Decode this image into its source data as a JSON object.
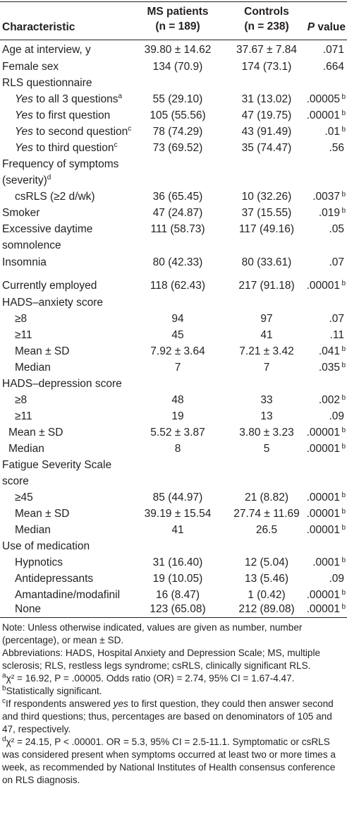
{
  "table": {
    "headers": {
      "characteristic": "Characteristic",
      "ms_line1": "MS patients",
      "ms_line2": "(n = 189)",
      "ctrl_line1": "Controls",
      "ctrl_line2": "(n = 238)",
      "p_letter": "P",
      "p_rest": " value"
    },
    "rows": [
      {
        "label": "Age at interview, y",
        "ms": "39.80 ± 14.62",
        "ctrl": "37.67 ± 7.84",
        "p": ".071"
      },
      {
        "label": "Female sex",
        "ms": "134 (70.9)",
        "ctrl": "174 (73.1)",
        "p": ".664"
      },
      {
        "label": "RLS questionnaire"
      },
      {
        "label_em": "Yes",
        "label_rest": " to all 3 questions",
        "label_sup": "a",
        "ms": "55 (29.10)",
        "ctrl": "31 (13.02)",
        "p": ".00005",
        "p_sup": "b"
      },
      {
        "label_em": "Yes",
        "label_rest": " to first question",
        "ms": "105 (55.56)",
        "ctrl": "47 (19.75)",
        "p": ".00001",
        "p_sup": "b"
      },
      {
        "label_em": "Yes",
        "label_rest": " to second question",
        "label_sup": "c",
        "ms": "78 (74.29)",
        "ctrl": "43 (91.49)",
        "p": ".01",
        "p_sup": "b"
      },
      {
        "label_em": "Yes",
        "label_rest": " to third question",
        "label_sup": "c",
        "ms": "73 (69.52)",
        "ctrl": "35 (74.47)",
        "p": ".56"
      },
      {
        "label_line1": "Frequency of symptoms",
        "label_line2": "(severity)",
        "label_sup": "d"
      },
      {
        "label": "csRLS (≥2 d/wk)",
        "ms": "36 (65.45)",
        "ctrl": "10 (32.26)",
        "p": ".0037",
        "p_sup": "b"
      },
      {
        "label": "Smoker",
        "ms": "47 (24.87)",
        "ctrl": "37 (15.55)",
        "p": ".019",
        "p_sup": "b"
      },
      {
        "label_line1": "Excessive daytime",
        "label_line2": "somnolence",
        "ms": "111 (58.73)",
        "ctrl": "117 (49.16)",
        "p": ".05"
      },
      {
        "label": "Insomnia",
        "ms": "80 (42.33)",
        "ctrl": "80 (33.61)",
        "p": ".07"
      },
      {
        "label": "Currently employed",
        "ms": "118 (62.43)",
        "ctrl": "217 (91.18)",
        "p": ".00001",
        "p_sup": "b"
      },
      {
        "label": "HADS–anxiety score"
      },
      {
        "label": "≥8",
        "ms": "94",
        "ctrl": "97",
        "p": ".07"
      },
      {
        "label": "≥11",
        "ms": "45",
        "ctrl": "41",
        "p": ".11"
      },
      {
        "label": "Mean ± SD",
        "ms": "7.92 ± 3.64",
        "ctrl": "7.21 ± 3.42",
        "p": ".041",
        "p_sup": "b"
      },
      {
        "label": "Median",
        "ms": "7",
        "ctrl": "7",
        "p": ".035",
        "p_sup": "b"
      },
      {
        "label": "HADS–depression score"
      },
      {
        "label": "≥8",
        "ms": "48",
        "ctrl": "33",
        "p": ".002",
        "p_sup": "b"
      },
      {
        "label": "≥11",
        "ms": "19",
        "ctrl": "13",
        "p": ".09"
      },
      {
        "label": "Mean ± SD",
        "ms": "5.52 ± 3.87",
        "ctrl": "3.80 ± 3.23",
        "p": ".00001",
        "p_sup": "b"
      },
      {
        "label": "Median",
        "ms": "8",
        "ctrl": "5",
        "p": ".00001",
        "p_sup": "b"
      },
      {
        "label_line1": "Fatigue Severity Scale",
        "label_line2": "score"
      },
      {
        "label": "≥45",
        "ms": "85 (44.97)",
        "ctrl": "21 (8.82)",
        "p": ".00001",
        "p_sup": "b"
      },
      {
        "label": "Mean ± SD",
        "ms": "39.19 ± 15.54",
        "ctrl": "27.74 ± 11.69",
        "p": ".00001",
        "p_sup": "b"
      },
      {
        "label": "Median",
        "ms": "41",
        "ctrl": "26.5",
        "p": ".00001",
        "p_sup": "b"
      },
      {
        "label": "Use of medication"
      },
      {
        "label": "Hypnotics",
        "ms": "31 (16.40)",
        "ctrl": "12 (5.04)",
        "p": ".0001",
        "p_sup": "b"
      },
      {
        "label": "Antidepressants",
        "ms": "19 (10.05)",
        "ctrl": "13 (5.46)",
        "p": ".09"
      },
      {
        "label": "Amantadine/modafinil",
        "ms": "16 (8.47)",
        "ctrl": "1 (0.42)",
        "p": ".00001",
        "p_sup": "b"
      },
      {
        "label": "None",
        "ms": "123 (65.08)",
        "ctrl": "212 (89.08)",
        "p": ".00001",
        "p_sup": "b"
      }
    ]
  },
  "notes": {
    "note": "Note: Unless otherwise indicated, values are given as number, number (percentage), or mean ± SD.",
    "abbreviations": "Abbreviations: HADS, Hospital Anxiety and Depression Scale; MS, multiple sclerosis; RLS, restless legs syndrome; csRLS, clinically significant RLS.",
    "fn_a_mark": "a",
    "fn_a_text": "χ² = 16.92, P = .00005. Odds ratio (OR) = 2.74, 95% CI = 1.67-4.47.",
    "fn_b_mark": "b",
    "fn_b_text": "Statistically significant.",
    "fn_c_mark": "c",
    "fn_c_text1": "If respondents answered ",
    "fn_c_em": "yes",
    "fn_c_text2": " to first question, they could then answer second and third questions; thus, percentages are based on denominators of 105 and 47, respectively.",
    "fn_d_mark": "d",
    "fn_d_text": "χ² = 24.15, P < .00001. OR = 5.3, 95% CI = 2.5-11.1. Symptomatic or csRLS was considered present when symptoms occurred at least two or more times a week, as recommended by National Institutes of Health consensus conference on RLS diagnosis."
  }
}
